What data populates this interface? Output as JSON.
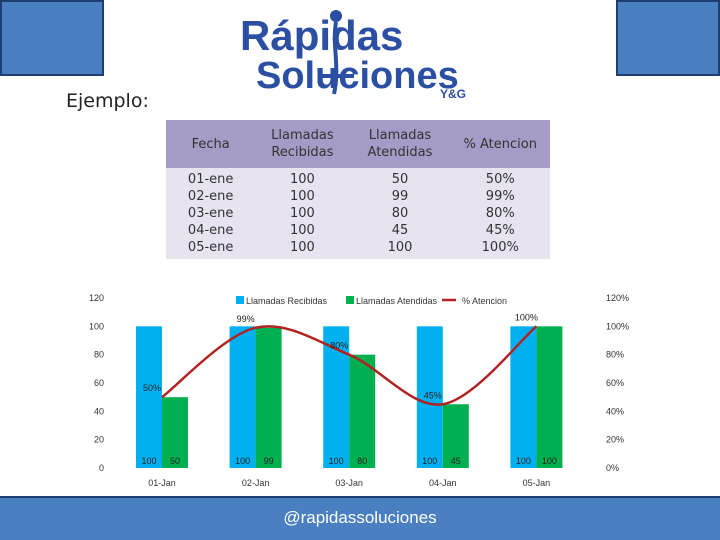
{
  "logo": {
    "line1": "Rápidas",
    "line2": "Soluciones",
    "suffix": "Y&G",
    "colors": {
      "primary": "#2b4fa3",
      "accent": "#222222"
    }
  },
  "example_label": "Ejemplo:",
  "table": {
    "headers": [
      "Fecha",
      "Llamadas Recibidas",
      "Llamadas Atendidas",
      "% Atencion"
    ],
    "rows": [
      [
        "01-ene",
        "100",
        "50",
        "50%"
      ],
      [
        "02-ene",
        "100",
        "99",
        "99%"
      ],
      [
        "03-ene",
        "100",
        "80",
        "80%"
      ],
      [
        "04-ene",
        "100",
        "45",
        "45%"
      ],
      [
        "05-ene",
        "100",
        "100",
        "100%"
      ]
    ]
  },
  "chart_data": {
    "type": "bar",
    "categories": [
      "01-Jan",
      "02-Jan",
      "03-Jan",
      "04-Jan",
      "05-Jan"
    ],
    "series": [
      {
        "name": "Llamadas Recibidas",
        "kind": "bar",
        "axis": "left",
        "color": "#00b0f0",
        "values": [
          100,
          100,
          100,
          100,
          100
        ],
        "labels": [
          "100",
          "100",
          "100",
          "100",
          "100"
        ]
      },
      {
        "name": "Llamadas Atendidas",
        "kind": "bar",
        "axis": "left",
        "color": "#00b050",
        "values": [
          50,
          99,
          80,
          45,
          100
        ],
        "labels": [
          "50",
          "99",
          "80",
          "45",
          "100"
        ]
      },
      {
        "name": "% Atencion",
        "kind": "line",
        "axis": "right",
        "color": "#b22222",
        "values": [
          0.5,
          0.99,
          0.8,
          0.45,
          1.0
        ],
        "labels": [
          "50%",
          "99%",
          "80%",
          "45%",
          "100%"
        ]
      }
    ],
    "y_left": {
      "min": 0,
      "max": 120,
      "ticks": [
        "0",
        "20",
        "40",
        "60",
        "80",
        "100",
        "120"
      ]
    },
    "y_right": {
      "min": 0,
      "max": 1.2,
      "ticks": [
        "0%",
        "20%",
        "40%",
        "60%",
        "80%",
        "100%",
        "120%"
      ]
    },
    "legend_position": "top-center",
    "grid": false
  },
  "footer": {
    "text": "@rapidassoluciones"
  }
}
